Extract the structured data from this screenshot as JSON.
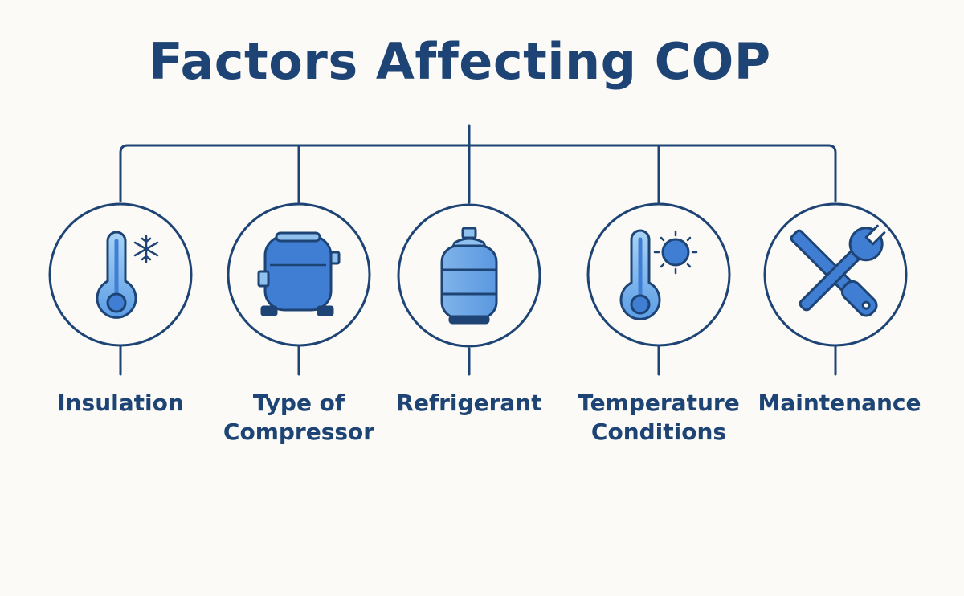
{
  "title": "Factors Affecting COP",
  "colors": {
    "dark_blue": "#1d4474",
    "icon_blue": "#3f7ed3",
    "light_blue": "#8fc0ee",
    "background": "#fbfaf6"
  },
  "factors": [
    {
      "label": "Insulation",
      "icon": "thermometer-snowflake-icon"
    },
    {
      "label": "Type of\nCompressor",
      "icon": "compressor-icon"
    },
    {
      "label": "Refrigerant",
      "icon": "gas-cylinder-icon"
    },
    {
      "label": "Temperature\nConditions",
      "icon": "thermometer-sun-icon"
    },
    {
      "label": "Maintenance",
      "icon": "wrench-screwdriver-icon"
    }
  ]
}
